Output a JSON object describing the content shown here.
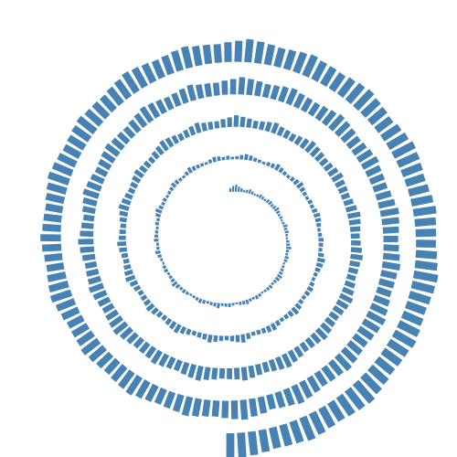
{
  "chart_data": {
    "type": "bar",
    "layout": "spiral",
    "title": "",
    "xlabel": "",
    "ylabel": "",
    "grid": false,
    "legend": "none",
    "bar_color": "#4682b4",
    "background": "#ffffff",
    "spiral_turns": 4.5,
    "series": [
      {
        "values": [
          6,
          9,
          11,
          8,
          6,
          4,
          5,
          7,
          5,
          3,
          4,
          6,
          5,
          4,
          6,
          7,
          5,
          6,
          8,
          6,
          4,
          5,
          3,
          4,
          7,
          5,
          6,
          4,
          3,
          5,
          6,
          8,
          5,
          4,
          6,
          5,
          3,
          4,
          5,
          6,
          8,
          7,
          5,
          4,
          6,
          5,
          4,
          3,
          5,
          6,
          4,
          5,
          7,
          6,
          5,
          3,
          4,
          6,
          5,
          4,
          8,
          6,
          5,
          4,
          6,
          7,
          5,
          4,
          3,
          5,
          6,
          5,
          7,
          9,
          6,
          5,
          4,
          6,
          5,
          3,
          4,
          6,
          8,
          5,
          4,
          7,
          6,
          5,
          4,
          6,
          5,
          8,
          10,
          7,
          5,
          6,
          4,
          5,
          6,
          8,
          7,
          5,
          4,
          6,
          9,
          7,
          6,
          5,
          4,
          6,
          8,
          7,
          5,
          6,
          4,
          5,
          7,
          9,
          8,
          6,
          5,
          4,
          6,
          7,
          10,
          8,
          6,
          5,
          7,
          9,
          11,
          8,
          6,
          5,
          7,
          6,
          8,
          10,
          9,
          7,
          5,
          6,
          8,
          7,
          6,
          9,
          12,
          10,
          8,
          6,
          5,
          7,
          9,
          8,
          6,
          7,
          10,
          12,
          9,
          7,
          6,
          8,
          11,
          10,
          8,
          7,
          6,
          9,
          13,
          11,
          9,
          7,
          8,
          10,
          12,
          9,
          8,
          7,
          9,
          11,
          14,
          12,
          10,
          8,
          9,
          11,
          13,
          10,
          9,
          8,
          10,
          12,
          15,
          13,
          11,
          9,
          10,
          12,
          14,
          11,
          10,
          9,
          11,
          13,
          16,
          14,
          12,
          10,
          11,
          13,
          15,
          12,
          11,
          10,
          12,
          14,
          17,
          15,
          13,
          11,
          12,
          14,
          16,
          13,
          12,
          11,
          13,
          15,
          18,
          16,
          14,
          12,
          13,
          15,
          17,
          14,
          13,
          12,
          14,
          16,
          19,
          17,
          15,
          13,
          14,
          16,
          18,
          15,
          14,
          13,
          15,
          17,
          20,
          18,
          16,
          14,
          15,
          17,
          19,
          16,
          15,
          14,
          16,
          18,
          21,
          19,
          17,
          15,
          16,
          18,
          20,
          17,
          16,
          15,
          17,
          19,
          22,
          20,
          18,
          16,
          17,
          19,
          21,
          18,
          17,
          16,
          18,
          20,
          23,
          21,
          19,
          17,
          18,
          20,
          22,
          19,
          18,
          17,
          19,
          21,
          24,
          22,
          20,
          18,
          19,
          21,
          23,
          20,
          19,
          18,
          20,
          22,
          24,
          21,
          19,
          17,
          20,
          22,
          25,
          23,
          21,
          19,
          20,
          22,
          24,
          21,
          20,
          19,
          21,
          23,
          26,
          24,
          22,
          20,
          21,
          23,
          25,
          22,
          21,
          20,
          22,
          24,
          27,
          25,
          23,
          21,
          22,
          24,
          26,
          23,
          22,
          21,
          23,
          25,
          28,
          26,
          24,
          22,
          23,
          25,
          27,
          24,
          23,
          22,
          24,
          26,
          29,
          27,
          25,
          23,
          24,
          26,
          28,
          25,
          24,
          23,
          25,
          27,
          30,
          28,
          26,
          24,
          25,
          27,
          29,
          26,
          25,
          24,
          26,
          28,
          30,
          27,
          25,
          23,
          26,
          28,
          31,
          29,
          27,
          25,
          26,
          28,
          30,
          27,
          26,
          25,
          27,
          29,
          32,
          30,
          28,
          26,
          27,
          29,
          31,
          28,
          27,
          26,
          28,
          30,
          33,
          31,
          29,
          27,
          28,
          30,
          32,
          29,
          28,
          27,
          29,
          31,
          34,
          32,
          30,
          28,
          29,
          31,
          33,
          30,
          29,
          28,
          30,
          32,
          35,
          33,
          31,
          29,
          30,
          32,
          34,
          31,
          30,
          29,
          31,
          33,
          36,
          34,
          32,
          30,
          31,
          33,
          35,
          32,
          31,
          30,
          32,
          34,
          36,
          33,
          31,
          29,
          32,
          34,
          37,
          35,
          33,
          31,
          32,
          34,
          36,
          33,
          32,
          31,
          33,
          35,
          38,
          36,
          34,
          32,
          33,
          35,
          37,
          34,
          33,
          32,
          34,
          36,
          39,
          37,
          35,
          33,
          34,
          36,
          38,
          35,
          34,
          33,
          35,
          37,
          40,
          38
        ]
      }
    ]
  }
}
